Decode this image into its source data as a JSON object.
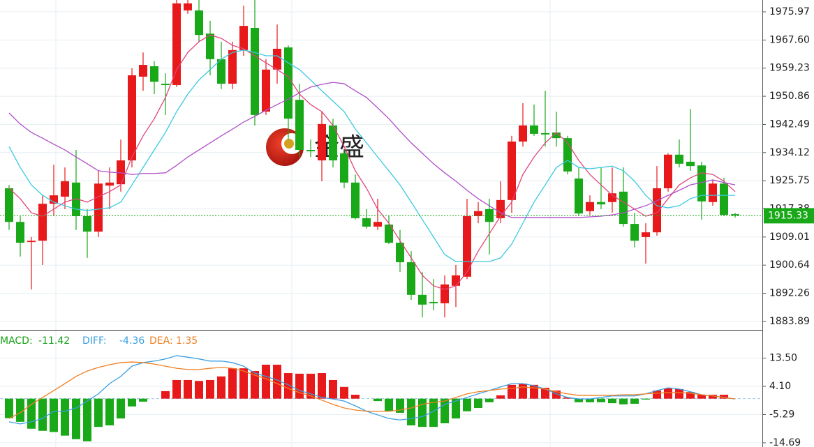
{
  "chart_data": [
    {
      "type": "candlestick",
      "watermark": "金盛",
      "up_color": "#e8191b",
      "down_color": "#18a818",
      "open": [
        1923.5,
        1913.5,
        1907.5,
        1907.9,
        1918.9,
        1921.0,
        1925.2,
        1915.2,
        1910.6,
        1924.3,
        1924.7,
        1931.8,
        1956.7,
        1959.8,
        1954.6,
        1954.2,
        1976.4,
        1976.4,
        1969.5,
        1961.9,
        1954.6,
        1964.6,
        1971.2,
        1946.3,
        1958.8,
        1965.4,
        1949.8,
        1934.9,
        1931.8,
        1942.2,
        1933.9,
        1925.2,
        1914.6,
        1912.1,
        1912.7,
        1907.3,
        1901.5,
        1891.8,
        1889.7,
        1889.3,
        1894.5,
        1897.2,
        1915.2,
        1917.3,
        1914.6,
        1920.0,
        1937.4,
        1942.2,
        1939.9,
        1940.1,
        1938.4,
        1926.4,
        1916.7,
        1919.4,
        1919.4,
        1922.5,
        1912.9,
        1909.0,
        1910.4,
        1923.5,
        1933.5,
        1931.4,
        1930.3,
        1919.4,
        1924.9,
        1915.8
      ],
      "high": [
        1924.5,
        1915.2,
        1909.0,
        1921.4,
        1930.5,
        1929.7,
        1934.9,
        1917.3,
        1928.7,
        1929.7,
        1938.0,
        1959.2,
        1963.9,
        1961.3,
        1957.7,
        1979.5,
        1979.5,
        1979.5,
        1973.3,
        1967.1,
        1967.1,
        1977.8,
        1979.5,
        1961.9,
        1972.2,
        1966.0,
        1954.6,
        1938.0,
        1946.3,
        1944.2,
        1934.9,
        1927.6,
        1917.3,
        1920.4,
        1915.2,
        1911.1,
        1904.8,
        1898.6,
        1896.5,
        1897.6,
        1900.7,
        1920.4,
        1919.4,
        1920.4,
        1925.6,
        1939.1,
        1948.8,
        1948.4,
        1952.5,
        1946.3,
        1939.1,
        1929.7,
        1921.4,
        1929.7,
        1929.7,
        1929.7,
        1916.2,
        1913.1,
        1930.1,
        1933.9,
        1938.0,
        1947.1,
        1931.4,
        1926.0,
        1926.6,
        1916.2
      ],
      "low": [
        1911.1,
        1903.2,
        1893.4,
        1900.7,
        1915.2,
        1917.3,
        1911.1,
        1902.8,
        1909.0,
        1917.3,
        1922.5,
        1929.7,
        1952.5,
        1951.5,
        1945.3,
        1953.6,
        1975.4,
        1967.1,
        1957.1,
        1953.0,
        1953.0,
        1962.9,
        1942.2,
        1945.3,
        1954.6,
        1938.0,
        1932.8,
        1932.8,
        1925.6,
        1929.7,
        1923.5,
        1914.2,
        1911.5,
        1911.1,
        1906.9,
        1898.6,
        1890.3,
        1885.1,
        1887.2,
        1885.1,
        1888.2,
        1896.5,
        1913.1,
        1903.8,
        1913.1,
        1916.2,
        1935.9,
        1939.1,
        1935.9,
        1935.9,
        1927.6,
        1915.2,
        1915.6,
        1917.3,
        1916.2,
        1912.1,
        1905.9,
        1901.1,
        1909.4,
        1922.5,
        1929.7,
        1928.7,
        1914.2,
        1918.3,
        1915.2,
        1914.8
      ],
      "close": [
        1913.5,
        1907.3,
        1907.9,
        1918.9,
        1921.4,
        1925.6,
        1915.2,
        1910.6,
        1924.9,
        1925.2,
        1931.8,
        1957.1,
        1960.2,
        1955.2,
        1954.2,
        1978.5,
        1978.5,
        1969.1,
        1961.9,
        1954.6,
        1964.6,
        1971.8,
        1945.3,
        1958.8,
        1965.0,
        1944.2,
        1934.9,
        1934.5,
        1942.6,
        1931.8,
        1925.2,
        1914.6,
        1912.1,
        1913.5,
        1907.3,
        1901.5,
        1891.8,
        1888.9,
        1889.3,
        1894.9,
        1897.6,
        1915.2,
        1916.7,
        1913.5,
        1920.0,
        1937.4,
        1942.2,
        1939.7,
        1939.5,
        1938.4,
        1928.5,
        1916.0,
        1919.4,
        1918.7,
        1922.0,
        1912.9,
        1907.9,
        1910.4,
        1923.5,
        1933.5,
        1930.8,
        1930.1,
        1919.6,
        1924.9,
        1915.6,
        1915.4
      ],
      "series": [
        {
          "color": "#e0457b",
          "values": [
            1923.5,
            1920.4,
            1916.2,
            1915.2,
            1917.3,
            1919.4,
            1920.4,
            1919.4,
            1921.0,
            1922.5,
            1924.5,
            1932.8,
            1939.1,
            1944.2,
            1950.5,
            1958.8,
            1963.9,
            1967.1,
            1969.1,
            1968.1,
            1966.0,
            1965.0,
            1962.9,
            1960.8,
            1958.8,
            1956.7,
            1951.5,
            1948.4,
            1946.3,
            1942.2,
            1935.9,
            1928.7,
            1923.5,
            1917.3,
            1913.1,
            1907.9,
            1902.8,
            1897.6,
            1894.5,
            1893.4,
            1894.5,
            1898.6,
            1904.8,
            1910.0,
            1915.2,
            1919.4,
            1927.6,
            1932.8,
            1937.0,
            1940.1,
            1937.0,
            1931.8,
            1927.6,
            1924.5,
            1921.4,
            1919.4,
            1917.3,
            1915.2,
            1916.2,
            1920.4,
            1924.5,
            1926.6,
            1928.1,
            1927.6,
            1925.6,
            1922.5
          ]
        },
        {
          "color": "#3cc8e0",
          "values": [
            1935.9,
            1929.7,
            1924.5,
            1921.4,
            1919.4,
            1918.3,
            1917.3,
            1916.9,
            1917.3,
            1917.7,
            1919.4,
            1924.5,
            1929.7,
            1934.9,
            1940.1,
            1946.3,
            1951.5,
            1955.7,
            1958.8,
            1961.9,
            1963.9,
            1964.6,
            1963.9,
            1962.9,
            1962.9,
            1960.8,
            1958.8,
            1955.7,
            1952.5,
            1949.4,
            1946.3,
            1941.1,
            1937.0,
            1932.8,
            1928.7,
            1924.5,
            1919.4,
            1914.2,
            1909.0,
            1903.8,
            1901.7,
            1901.7,
            1901.7,
            1901.7,
            1902.8,
            1906.9,
            1913.1,
            1919.4,
            1924.5,
            1929.7,
            1931.8,
            1929.7,
            1929.3,
            1929.7,
            1930.1,
            1928.7,
            1925.6,
            1921.4,
            1918.3,
            1917.7,
            1918.3,
            1920.4,
            1921.4,
            1921.4,
            1921.4,
            1921.4
          ]
        },
        {
          "color": "#b04fc8",
          "values": [
            1945.9,
            1942.6,
            1940.1,
            1938.4,
            1936.6,
            1934.9,
            1932.8,
            1930.8,
            1928.7,
            1928.3,
            1928.1,
            1927.6,
            1927.9,
            1927.9,
            1928.1,
            1930.3,
            1932.8,
            1934.9,
            1937.0,
            1939.1,
            1941.1,
            1943.2,
            1944.9,
            1946.7,
            1948.4,
            1950.0,
            1951.9,
            1953.6,
            1954.4,
            1955.0,
            1954.6,
            1952.5,
            1950.5,
            1947.4,
            1944.2,
            1940.5,
            1937.0,
            1933.9,
            1930.8,
            1928.1,
            1925.6,
            1922.9,
            1920.4,
            1918.3,
            1916.2,
            1914.8,
            1914.8,
            1914.8,
            1914.8,
            1914.8,
            1914.8,
            1914.8,
            1915.0,
            1915.2,
            1915.6,
            1916.2,
            1917.3,
            1918.3,
            1919.8,
            1921.4,
            1922.9,
            1924.5,
            1925.2,
            1926.0,
            1925.2,
            1924.5
          ]
        }
      ],
      "last_price": 1915.33,
      "last_price_color": "#18a818",
      "ylim": [
        1881.6,
        1979.5
      ],
      "yticks": [
        1975.97,
        {
          "value": 1967.6,
          "label": "1967.60"
        },
        1959.23,
        1950.86,
        1942.49,
        1934.12,
        1925.75,
        1917.38,
        1909.01,
        1900.64,
        1892.26,
        1883.89
      ],
      "grid": true
    },
    {
      "type": "macd",
      "legend": [
        {
          "label": "MACD:",
          "value": -11.42,
          "color": "#18a018"
        },
        {
          "label": "DIFF:",
          "value": -4.36,
          "color": "#3a9fe0"
        },
        {
          "label": "DEA:",
          "value": 1.35,
          "color": "#f07e20"
        }
      ],
      "up_color": "#e8191b",
      "down_color": "#18a818",
      "histogram": [
        -6.5,
        -7.7,
        -10.0,
        -10.7,
        -11.1,
        -12.3,
        -13.5,
        -14.2,
        -9.4,
        -8.9,
        -6.6,
        -2.6,
        -1.0,
        0,
        2.5,
        6.2,
        6.2,
        5.9,
        6.2,
        7.4,
        10.1,
        10.1,
        9.2,
        11.3,
        11.3,
        8.5,
        8.3,
        8.3,
        8.5,
        6.2,
        3.9,
        1.3,
        0,
        -0.8,
        -4.2,
        -4.7,
        -8.9,
        -9.4,
        -9.4,
        -8.2,
        -6.6,
        -4.2,
        -3.1,
        -1.2,
        1.1,
        4.6,
        5.0,
        4.6,
        3.6,
        2.7,
        0.4,
        -1.2,
        -1.2,
        -1.2,
        -1.5,
        -1.9,
        -1.7,
        -0.3,
        2.7,
        3.4,
        3.2,
        2.2,
        1.3,
        1.3,
        1.3,
        0
      ],
      "diff": [
        -7.7,
        -8.4,
        -7.7,
        -6.6,
        -4.2,
        -4.2,
        -3.1,
        -0.8,
        1.6,
        5.0,
        7.4,
        10.8,
        12.0,
        12.5,
        13.2,
        14.3,
        13.8,
        13.2,
        12.5,
        12.5,
        12.0,
        10.8,
        8.5,
        7.4,
        6.2,
        4.6,
        2.7,
        1.6,
        0.4,
        -0.1,
        -0.8,
        -2.4,
        -4.2,
        -5.4,
        -6.6,
        -7.1,
        -6.6,
        -6.0,
        -4.2,
        -1.9,
        -0.8,
        0.4,
        1.6,
        2.7,
        3.9,
        5.0,
        5.0,
        4.3,
        3.2,
        1.6,
        0.4,
        -0.1,
        -0.1,
        0.4,
        0.9,
        0.9,
        0.9,
        1.6,
        2.7,
        3.6,
        3.2,
        2.3,
        1.3,
        0.9,
        0.4,
        -0.1
      ],
      "dea": [
        -6.6,
        -4.7,
        -1.9,
        0.4,
        2.7,
        5.0,
        7.4,
        9.2,
        10.4,
        11.3,
        12.0,
        12.2,
        12.0,
        11.5,
        10.8,
        10.1,
        9.7,
        9.7,
        10.1,
        10.4,
        10.1,
        9.2,
        7.8,
        6.6,
        5.0,
        3.4,
        2.0,
        0.9,
        -0.5,
        -1.9,
        -3.1,
        -3.8,
        -4.2,
        -4.2,
        -4.2,
        -3.8,
        -3.1,
        -1.9,
        -1.2,
        -0.8,
        0.4,
        1.6,
        2.3,
        2.7,
        3.2,
        3.4,
        3.9,
        3.6,
        3.2,
        2.3,
        1.6,
        1.1,
        1.1,
        1.1,
        1.1,
        1.3,
        1.3,
        1.6,
        1.8,
        2.0,
        2.0,
        1.8,
        1.3,
        0.9,
        0.4,
        -0.1
      ],
      "ylim": [
        -16.09,
        22.43
      ],
      "yticks": [
        {
          "value": 13.5,
          "label": "13.50"
        },
        {
          "value": 4.1,
          "label": "4.10"
        },
        -5.29,
        -14.69
      ],
      "grid": true
    }
  ]
}
